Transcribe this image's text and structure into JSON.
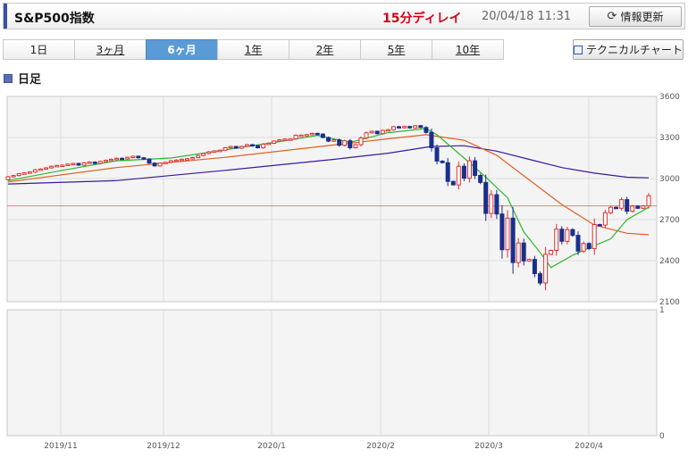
{
  "header": {
    "title": "S&P500指数",
    "delay": "15分ディレイ",
    "timestamp": "20/04/18 11:31",
    "refresh_label": "情報更新"
  },
  "tabs": [
    {
      "label": "1日",
      "active": false,
      "link": false
    },
    {
      "label": "3ヶ月",
      "active": false,
      "link": true
    },
    {
      "label": "6ヶ月",
      "active": true,
      "link": false
    },
    {
      "label": "1年",
      "active": false,
      "link": true
    },
    {
      "label": "2年",
      "active": false,
      "link": true
    },
    {
      "label": "5年",
      "active": false,
      "link": true
    },
    {
      "label": "10年",
      "active": false,
      "link": true
    }
  ],
  "technical_chart_label": "テクニカルチャート",
  "section_label": "日足",
  "colors": {
    "up": "#e03030",
    "down": "#1a2f8c",
    "ma_short": "#2eb82e",
    "ma_mid": "#e06020",
    "ma_long": "#3a1a9a",
    "ref_line": "#e88080"
  },
  "chart_data": {
    "type": "candlestick",
    "x_ticks": [
      "2019/11",
      "2019/12",
      "2020/1",
      "2020/2",
      "2020/3",
      "2020/4"
    ],
    "y_ticks": [
      "3600",
      "3300",
      "3000",
      "2700",
      "2400",
      "2100"
    ],
    "ylim": [
      2100,
      3600
    ],
    "reference_line": 2800,
    "volume_ticks": [
      "1",
      "0"
    ],
    "grid": true,
    "candles": [
      [
        2992,
        3013
      ],
      [
        3013,
        3022
      ],
      [
        3022,
        3035
      ],
      [
        3035,
        3041
      ],
      [
        3041,
        3048
      ],
      [
        3048,
        3064
      ],
      [
        3064,
        3070
      ],
      [
        3070,
        3078
      ],
      [
        3078,
        3090
      ],
      [
        3090,
        3095
      ],
      [
        3095,
        3098
      ],
      [
        3098,
        3105
      ],
      [
        3105,
        3110
      ],
      [
        3110,
        3098
      ],
      [
        3098,
        3115
      ],
      [
        3115,
        3120
      ],
      [
        3120,
        3110
      ],
      [
        3110,
        3125
      ],
      [
        3125,
        3133
      ],
      [
        3133,
        3141
      ],
      [
        3141,
        3148
      ],
      [
        3148,
        3143
      ],
      [
        3143,
        3155
      ],
      [
        3155,
        3163
      ],
      [
        3163,
        3152
      ],
      [
        3152,
        3142
      ],
      [
        3142,
        3113
      ],
      [
        3113,
        3093
      ],
      [
        3093,
        3113
      ],
      [
        3113,
        3118
      ],
      [
        3118,
        3130
      ],
      [
        3130,
        3135
      ],
      [
        3135,
        3141
      ],
      [
        3141,
        3145
      ],
      [
        3145,
        3153
      ],
      [
        3153,
        3168
      ],
      [
        3168,
        3183
      ],
      [
        3183,
        3195
      ],
      [
        3195,
        3202
      ],
      [
        3202,
        3207
      ],
      [
        3207,
        3225
      ],
      [
        3225,
        3234
      ],
      [
        3234,
        3222
      ],
      [
        3222,
        3235
      ],
      [
        3235,
        3247
      ],
      [
        3247,
        3240
      ],
      [
        3240,
        3225
      ],
      [
        3225,
        3252
      ],
      [
        3252,
        3258
      ],
      [
        3258,
        3274
      ],
      [
        3274,
        3283
      ],
      [
        3283,
        3288
      ],
      [
        3288,
        3289
      ],
      [
        3289,
        3316
      ],
      [
        3316,
        3317
      ],
      [
        3317,
        3321
      ],
      [
        3321,
        3330
      ],
      [
        3330,
        3325
      ],
      [
        3325,
        3300
      ],
      [
        3300,
        3273
      ],
      [
        3273,
        3283
      ],
      [
        3283,
        3243
      ],
      [
        3243,
        3276
      ],
      [
        3276,
        3225
      ],
      [
        3225,
        3248
      ],
      [
        3248,
        3297
      ],
      [
        3297,
        3334
      ],
      [
        3334,
        3345
      ],
      [
        3345,
        3328
      ],
      [
        3328,
        3352
      ],
      [
        3352,
        3357
      ],
      [
        3357,
        3379
      ],
      [
        3379,
        3373
      ],
      [
        3373,
        3380
      ],
      [
        3380,
        3370
      ],
      [
        3370,
        3386
      ],
      [
        3386,
        3373
      ],
      [
        3373,
        3337
      ],
      [
        3337,
        3225
      ],
      [
        3225,
        3128
      ],
      [
        3128,
        3116
      ],
      [
        3116,
        2979
      ],
      [
        2979,
        2954
      ],
      [
        2954,
        3090
      ],
      [
        3090,
        3003
      ],
      [
        3003,
        3130
      ],
      [
        3130,
        3023
      ],
      [
        3023,
        2972
      ],
      [
        2972,
        2746
      ],
      [
        2746,
        2882
      ],
      [
        2882,
        2741
      ],
      [
        2741,
        2480
      ],
      [
        2480,
        2711
      ],
      [
        2711,
        2386
      ],
      [
        2386,
        2529
      ],
      [
        2529,
        2398
      ],
      [
        2398,
        2409
      ],
      [
        2409,
        2305
      ],
      [
        2305,
        2237
      ],
      [
        2237,
        2447
      ],
      [
        2447,
        2475
      ],
      [
        2475,
        2630
      ],
      [
        2630,
        2541
      ],
      [
        2541,
        2627
      ],
      [
        2627,
        2585
      ],
      [
        2585,
        2470
      ],
      [
        2470,
        2526
      ],
      [
        2526,
        2488
      ],
      [
        2488,
        2664
      ],
      [
        2664,
        2660
      ],
      [
        2660,
        2750
      ],
      [
        2750,
        2790
      ],
      [
        2790,
        2783
      ],
      [
        2783,
        2846
      ],
      [
        2846,
        2761
      ],
      [
        2761,
        2799
      ],
      [
        2799,
        2783
      ],
      [
        2783,
        2800
      ],
      [
        2800,
        2875
      ]
    ],
    "ma_short": [
      [
        0,
        2985
      ],
      [
        10,
        3060
      ],
      [
        20,
        3130
      ],
      [
        30,
        3150
      ],
      [
        40,
        3210
      ],
      [
        50,
        3270
      ],
      [
        57,
        3315
      ],
      [
        63,
        3265
      ],
      [
        70,
        3335
      ],
      [
        77,
        3365
      ],
      [
        79,
        3320
      ],
      [
        84,
        3150
      ],
      [
        88,
        3010
      ],
      [
        92,
        2860
      ],
      [
        95,
        2610
      ],
      [
        98,
        2460
      ],
      [
        100,
        2350
      ],
      [
        104,
        2440
      ],
      [
        108,
        2510
      ],
      [
        111,
        2560
      ],
      [
        114,
        2700
      ],
      [
        118,
        2790
      ]
    ],
    "ma_mid": [
      [
        0,
        2975
      ],
      [
        20,
        3080
      ],
      [
        40,
        3155
      ],
      [
        60,
        3245
      ],
      [
        70,
        3290
      ],
      [
        77,
        3320
      ],
      [
        84,
        3280
      ],
      [
        90,
        3170
      ],
      [
        96,
        2990
      ],
      [
        102,
        2810
      ],
      [
        108,
        2660
      ],
      [
        114,
        2600
      ],
      [
        118,
        2590
      ]
    ],
    "ma_long": [
      [
        0,
        2960
      ],
      [
        20,
        2985
      ],
      [
        40,
        3060
      ],
      [
        60,
        3140
      ],
      [
        70,
        3185
      ],
      [
        78,
        3235
      ],
      [
        84,
        3240
      ],
      [
        90,
        3200
      ],
      [
        96,
        3140
      ],
      [
        102,
        3080
      ],
      [
        108,
        3040
      ],
      [
        114,
        3010
      ],
      [
        118,
        3005
      ]
    ]
  }
}
